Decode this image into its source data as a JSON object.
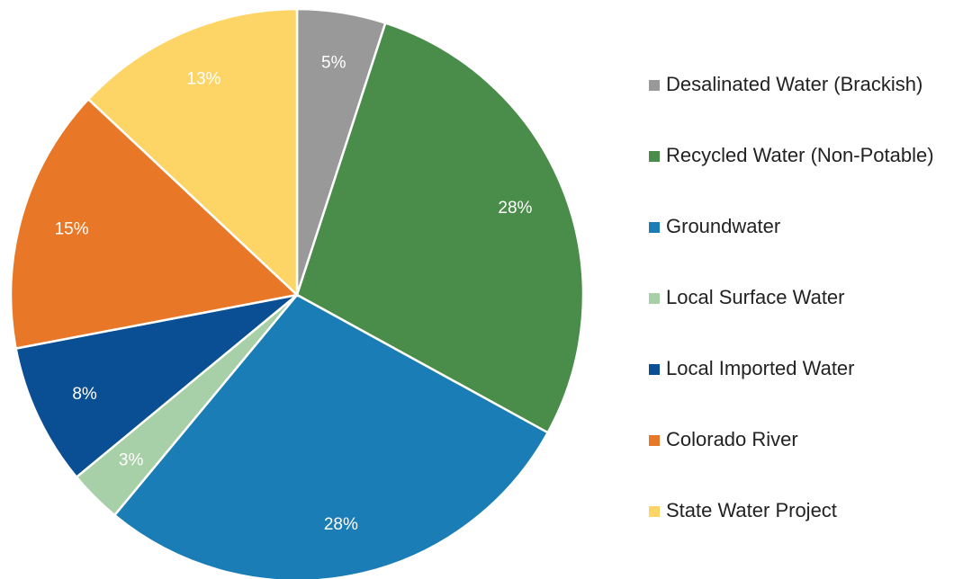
{
  "chart_data": {
    "type": "pie",
    "categories": [
      "Desalinated Water (Brackish)",
      "Recycled Water (Non-Potable)",
      "Groundwater",
      "Local Surface Water",
      "Local Imported Water",
      "Colorado River",
      "State Water Project"
    ],
    "values": [
      5,
      28,
      28,
      3,
      8,
      15,
      13
    ],
    "value_labels": [
      "5%",
      "28%",
      "28%",
      "3%",
      "8%",
      "15%",
      "13%"
    ],
    "colors": [
      "#999999",
      "#4a8c4a",
      "#1a7db5",
      "#a8d0a8",
      "#0a4f94",
      "#e87828",
      "#fdd566"
    ],
    "legend": "right"
  }
}
